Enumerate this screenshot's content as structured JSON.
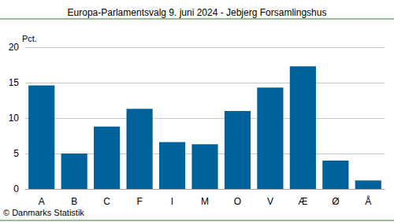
{
  "chart_data": {
    "type": "bar",
    "title": "Europa-Parlamentsvalg 9. juni 2024 - Jebjerg Forsamlingshus",
    "y_label": "Pct.",
    "source": "© Danmarks Statistik",
    "categories": [
      "A",
      "B",
      "C",
      "F",
      "I",
      "M",
      "O",
      "V",
      "Æ",
      "Ø",
      "Å"
    ],
    "values": [
      14.6,
      5.0,
      8.8,
      11.3,
      6.6,
      6.3,
      11.0,
      14.3,
      17.3,
      4.0,
      1.2
    ],
    "color": "#00629b",
    "ylim": [
      0,
      20
    ],
    "yticks": [
      0,
      5,
      10,
      15,
      20
    ],
    "grid": true
  }
}
